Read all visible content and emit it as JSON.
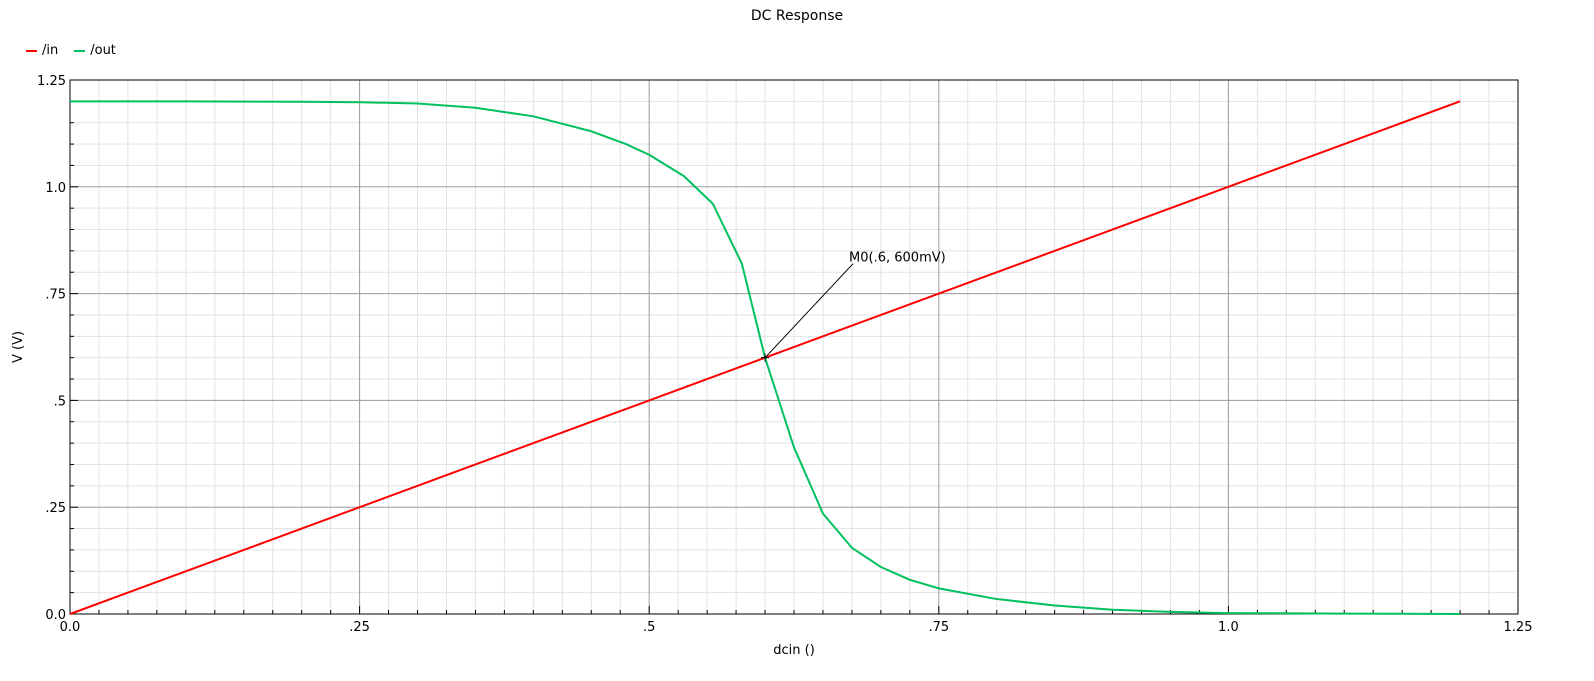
{
  "chart_data": {
    "type": "line",
    "title": "DC Response",
    "xlabel": "dcin ()",
    "ylabel": "V (V)",
    "xlim": [
      0,
      1.25
    ],
    "ylim": [
      0,
      1.25
    ],
    "x_ticks": [
      {
        "value": 0,
        "label": "0.0"
      },
      {
        "value": 0.25,
        "label": ".25"
      },
      {
        "value": 0.5,
        "label": ".5"
      },
      {
        "value": 0.75,
        "label": ".75"
      },
      {
        "value": 1.0,
        "label": "1.0"
      },
      {
        "value": 1.25,
        "label": "1.25"
      }
    ],
    "y_ticks": [
      {
        "value": 0,
        "label": "0.0"
      },
      {
        "value": 0.25,
        "label": ".25"
      },
      {
        "value": 0.5,
        "label": ".5"
      },
      {
        "value": 0.75,
        "label": ".75"
      },
      {
        "value": 1.0,
        "label": "1.0"
      },
      {
        "value": 1.25,
        "label": "1.25"
      }
    ],
    "grid": true,
    "minor_grid": true,
    "legend_position": "top-left",
    "series": [
      {
        "name": "/in",
        "color": "#ff0000",
        "x": [
          0,
          1.2
        ],
        "y": [
          0,
          1.2
        ]
      },
      {
        "name": "/out",
        "color": "#00c060",
        "x": [
          0,
          0.1,
          0.2,
          0.25,
          0.3,
          0.35,
          0.4,
          0.45,
          0.48,
          0.5,
          0.53,
          0.555,
          0.58,
          0.6,
          0.625,
          0.65,
          0.675,
          0.7,
          0.725,
          0.75,
          0.8,
          0.85,
          0.9,
          0.95,
          1.0,
          1.1,
          1.2
        ],
        "y": [
          1.2,
          1.2,
          1.199,
          1.198,
          1.195,
          1.185,
          1.165,
          1.13,
          1.1,
          1.075,
          1.025,
          0.96,
          0.82,
          0.6,
          0.39,
          0.235,
          0.155,
          0.11,
          0.08,
          0.06,
          0.035,
          0.02,
          0.01,
          0.005,
          0.002,
          0.001,
          0.0
        ]
      }
    ],
    "marker": {
      "label": "M0(.6, 600mV)",
      "x": 0.6,
      "y": 0.6
    }
  }
}
